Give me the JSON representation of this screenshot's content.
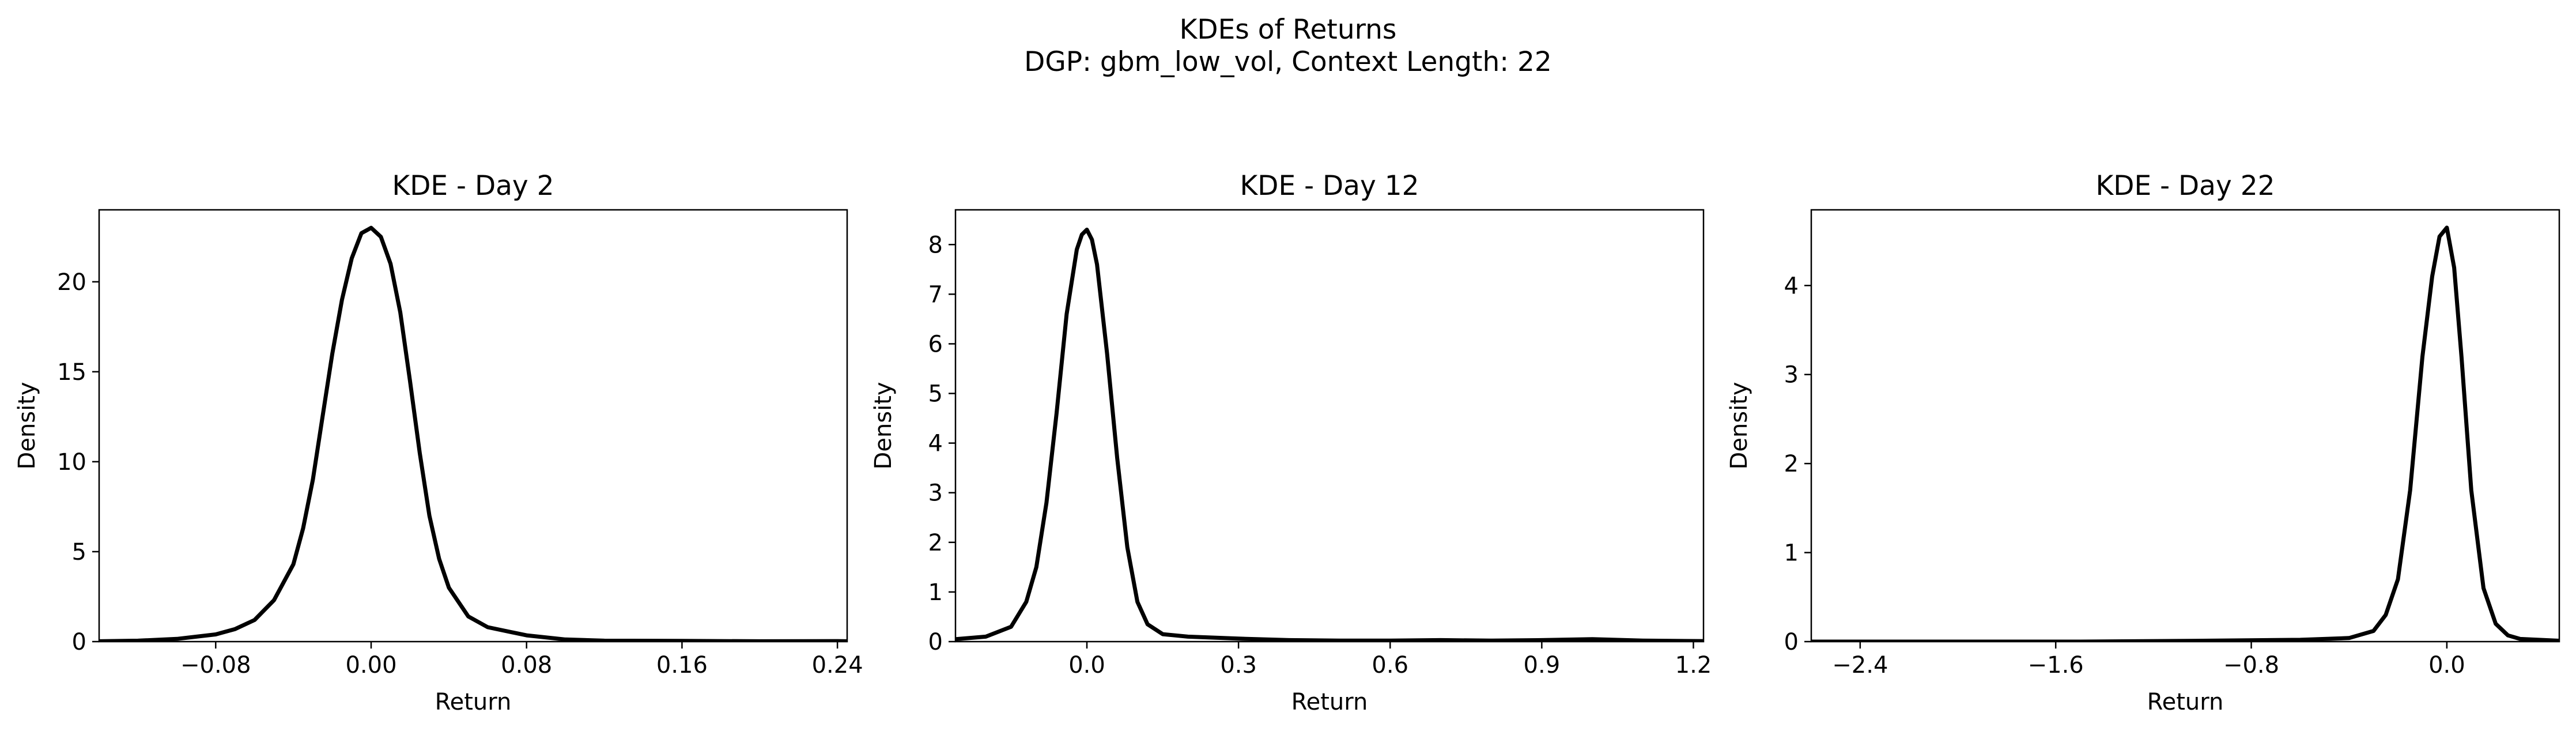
{
  "figure": {
    "title": "KDEs of Returns",
    "subtitle": "DGP: gbm_low_vol, Context Length: 22"
  },
  "chart_data": [
    {
      "type": "line",
      "title": "KDE - Day 2",
      "xlabel": "Return",
      "ylabel": "Density",
      "xlim": [
        -0.14,
        0.245
      ],
      "ylim": [
        0,
        24
      ],
      "xticks": [
        -0.08,
        0.0,
        0.08,
        0.16,
        0.24
      ],
      "xtick_labels": [
        "−0.08",
        "0.00",
        "0.08",
        "0.16",
        "0.24"
      ],
      "yticks": [
        0,
        5,
        10,
        15,
        20
      ],
      "ytick_labels": [
        "0",
        "5",
        "10",
        "15",
        "20"
      ],
      "grid": false,
      "line_color": "#000000",
      "x": [
        -0.14,
        -0.12,
        -0.1,
        -0.08,
        -0.07,
        -0.06,
        -0.05,
        -0.04,
        -0.035,
        -0.03,
        -0.025,
        -0.02,
        -0.015,
        -0.01,
        -0.005,
        0.0,
        0.005,
        0.01,
        0.015,
        0.02,
        0.025,
        0.03,
        0.035,
        0.04,
        0.05,
        0.06,
        0.08,
        0.1,
        0.12,
        0.16,
        0.2,
        0.24,
        0.245
      ],
      "y": [
        0.02,
        0.05,
        0.15,
        0.4,
        0.7,
        1.2,
        2.3,
        4.3,
        6.3,
        9.0,
        12.5,
        16.0,
        19.0,
        21.3,
        22.7,
        23.0,
        22.5,
        21.0,
        18.3,
        14.5,
        10.5,
        7.0,
        4.6,
        3.0,
        1.4,
        0.8,
        0.35,
        0.12,
        0.05,
        0.04,
        0.02,
        0.03,
        0.02
      ]
    },
    {
      "type": "line",
      "title": "KDE - Day 12",
      "xlabel": "Return",
      "ylabel": "Density",
      "xlim": [
        -0.26,
        1.22
      ],
      "ylim": [
        0,
        8.7
      ],
      "xticks": [
        0.0,
        0.3,
        0.6,
        0.9,
        1.2
      ],
      "xtick_labels": [
        "0.0",
        "0.3",
        "0.6",
        "0.9",
        "1.2"
      ],
      "yticks": [
        0,
        1,
        2,
        3,
        4,
        5,
        6,
        7,
        8
      ],
      "ytick_labels": [
        "0",
        "1",
        "2",
        "3",
        "4",
        "5",
        "6",
        "7",
        "8"
      ],
      "grid": false,
      "line_color": "#000000",
      "x": [
        -0.26,
        -0.2,
        -0.15,
        -0.12,
        -0.1,
        -0.08,
        -0.06,
        -0.04,
        -0.02,
        -0.01,
        0.0,
        0.01,
        0.02,
        0.04,
        0.06,
        0.08,
        0.1,
        0.12,
        0.15,
        0.2,
        0.3,
        0.4,
        0.5,
        0.6,
        0.7,
        0.8,
        0.9,
        1.0,
        1.1,
        1.22
      ],
      "y": [
        0.05,
        0.1,
        0.3,
        0.8,
        1.5,
        2.8,
        4.6,
        6.6,
        7.9,
        8.2,
        8.3,
        8.1,
        7.6,
        5.8,
        3.7,
        1.9,
        0.8,
        0.35,
        0.15,
        0.1,
        0.06,
        0.03,
        0.02,
        0.02,
        0.03,
        0.02,
        0.03,
        0.05,
        0.02,
        0.01
      ]
    },
    {
      "type": "line",
      "title": "KDE - Day 22",
      "xlabel": "Return",
      "ylabel": "Density",
      "xlim": [
        -2.6,
        0.46
      ],
      "ylim": [
        0,
        4.85
      ],
      "xticks": [
        -2.4,
        -1.6,
        -0.8,
        0.0
      ],
      "xtick_labels": [
        "−2.4",
        "−1.6",
        "−0.8",
        "0.0"
      ],
      "yticks": [
        0,
        1,
        2,
        3,
        4
      ],
      "ytick_labels": [
        "0",
        "1",
        "2",
        "3",
        "4"
      ],
      "grid": false,
      "line_color": "#000000",
      "x": [
        -2.6,
        -2.0,
        -1.5,
        -1.0,
        -0.6,
        -0.4,
        -0.3,
        -0.25,
        -0.2,
        -0.15,
        -0.1,
        -0.06,
        -0.03,
        0.0,
        0.03,
        0.06,
        0.1,
        0.15,
        0.2,
        0.25,
        0.3,
        0.46
      ],
      "y": [
        0.0,
        0.0,
        0.0,
        0.01,
        0.02,
        0.04,
        0.12,
        0.3,
        0.7,
        1.7,
        3.2,
        4.1,
        4.55,
        4.65,
        4.2,
        3.2,
        1.7,
        0.6,
        0.2,
        0.07,
        0.03,
        0.01
      ]
    }
  ]
}
